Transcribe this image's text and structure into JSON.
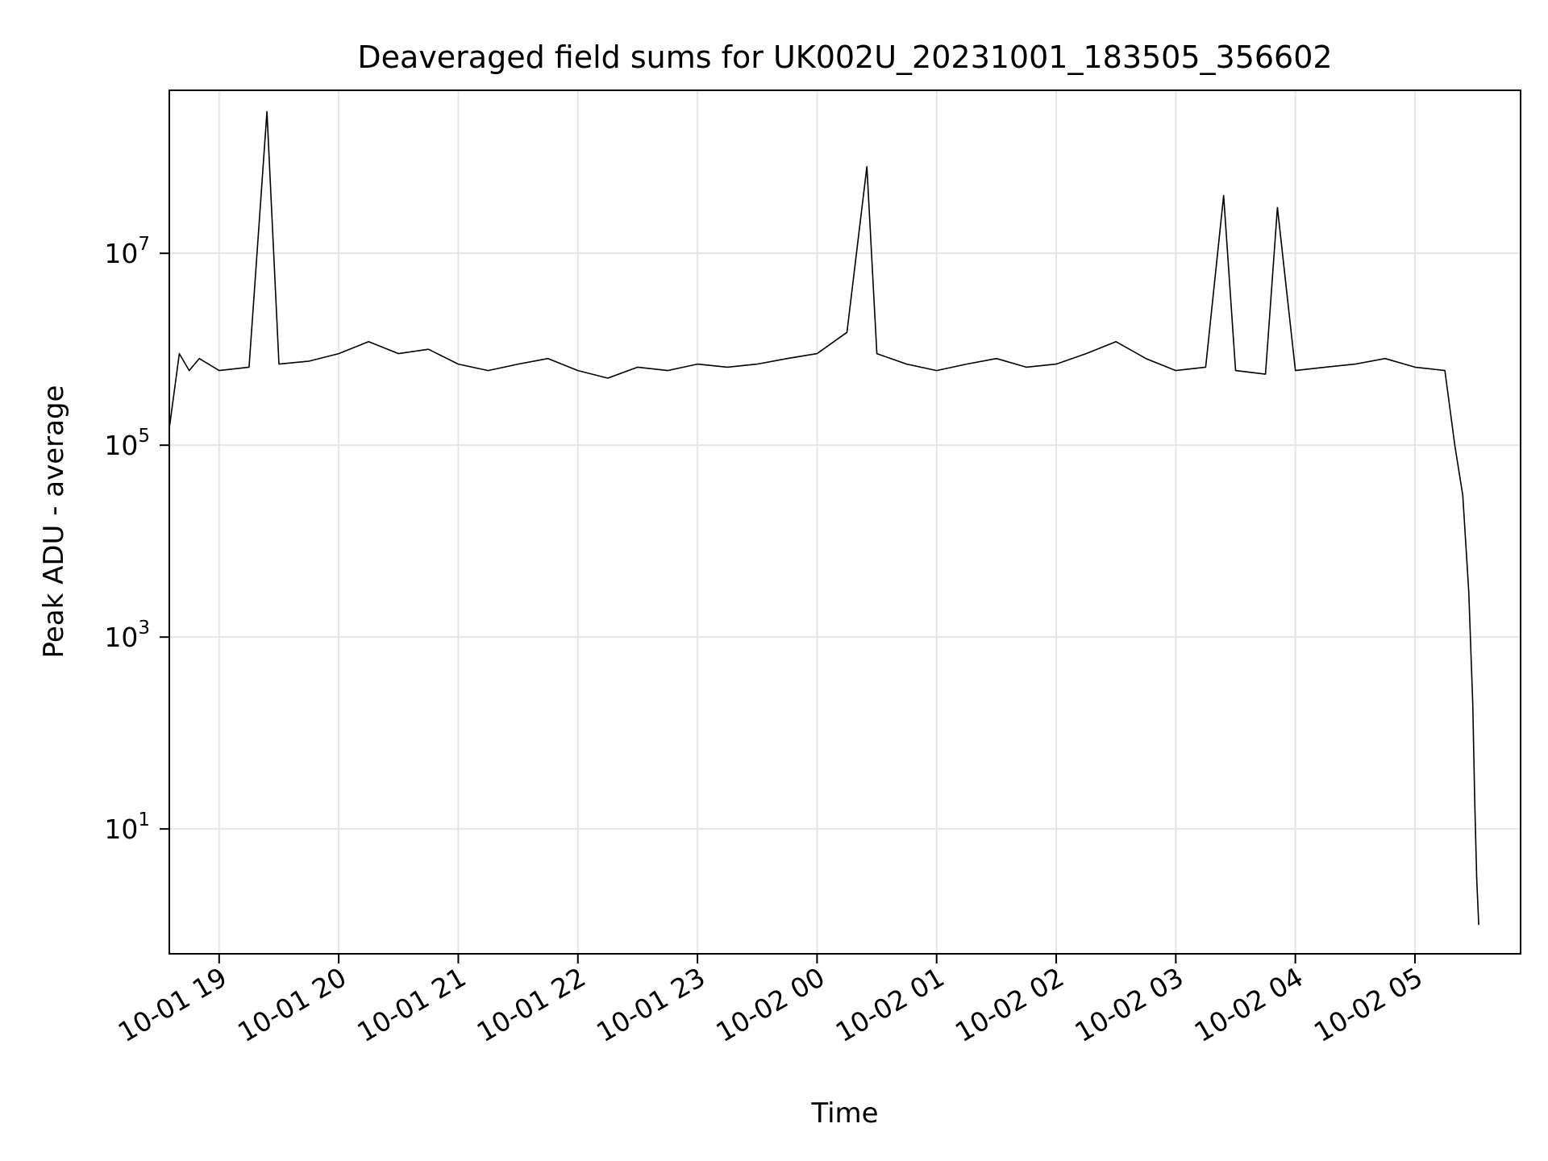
{
  "chart_data": {
    "type": "line",
    "title": "Deaveraged field sums for UK002U_20231001_183505_356602",
    "xlabel": "Time",
    "ylabel": "Peak ADU - average",
    "xlim": [
      "2023-10-01 18:35",
      "2023-10-02 05:53"
    ],
    "ylim": [
      0.5,
      500000000
    ],
    "yscale": "log",
    "grid": true,
    "line_color": "#000000",
    "x_ticks": [
      {
        "value": "2023-10-01 19:00",
        "label": "10-01 19"
      },
      {
        "value": "2023-10-01 20:00",
        "label": "10-01 20"
      },
      {
        "value": "2023-10-01 21:00",
        "label": "10-01 21"
      },
      {
        "value": "2023-10-01 22:00",
        "label": "10-01 22"
      },
      {
        "value": "2023-10-01 23:00",
        "label": "10-01 23"
      },
      {
        "value": "2023-10-02 00:00",
        "label": "10-02 00"
      },
      {
        "value": "2023-10-02 01:00",
        "label": "10-02 01"
      },
      {
        "value": "2023-10-02 02:00",
        "label": "10-02 02"
      },
      {
        "value": "2023-10-02 03:00",
        "label": "10-02 03"
      },
      {
        "value": "2023-10-02 04:00",
        "label": "10-02 04"
      },
      {
        "value": "2023-10-02 05:00",
        "label": "10-02 05"
      }
    ],
    "y_ticks": [
      {
        "value": 10,
        "base": "10",
        "exp": "1"
      },
      {
        "value": 1000,
        "base": "10",
        "exp": "3"
      },
      {
        "value": 100000,
        "base": "10",
        "exp": "5"
      },
      {
        "value": 10000000,
        "base": "10",
        "exp": "7"
      }
    ],
    "series": [
      {
        "x": [
          "2023-10-01 18:35",
          "2023-10-01 18:40",
          "2023-10-01 18:45",
          "2023-10-01 18:50",
          "2023-10-01 19:00",
          "2023-10-01 19:15",
          "2023-10-01 19:24",
          "2023-10-01 19:30",
          "2023-10-01 19:45",
          "2023-10-01 20:00",
          "2023-10-01 20:15",
          "2023-10-01 20:30",
          "2023-10-01 20:45",
          "2023-10-01 21:00",
          "2023-10-01 21:15",
          "2023-10-01 21:30",
          "2023-10-01 21:45",
          "2023-10-01 22:00",
          "2023-10-01 22:15",
          "2023-10-01 22:30",
          "2023-10-01 22:45",
          "2023-10-01 23:00",
          "2023-10-01 23:15",
          "2023-10-01 23:30",
          "2023-10-01 23:45",
          "2023-10-02 00:00",
          "2023-10-02 00:15",
          "2023-10-02 00:25",
          "2023-10-02 00:30",
          "2023-10-02 00:45",
          "2023-10-02 01:00",
          "2023-10-02 01:15",
          "2023-10-02 01:30",
          "2023-10-02 01:45",
          "2023-10-02 02:00",
          "2023-10-02 02:15",
          "2023-10-02 02:30",
          "2023-10-02 02:45",
          "2023-10-02 03:00",
          "2023-10-02 03:15",
          "2023-10-02 03:24",
          "2023-10-02 03:30",
          "2023-10-02 03:45",
          "2023-10-02 03:51",
          "2023-10-02 04:00",
          "2023-10-02 04:15",
          "2023-10-02 04:30",
          "2023-10-02 04:45",
          "2023-10-02 05:00",
          "2023-10-02 05:15",
          "2023-10-02 05:20",
          "2023-10-02 05:24",
          "2023-10-02 05:27",
          "2023-10-02 05:29",
          "2023-10-02 05:30",
          "2023-10-02 05:31",
          "2023-10-02 05:32"
        ],
        "y": [
          150000,
          900000,
          600000,
          800000,
          600000,
          650000,
          300000000,
          700000,
          750000,
          900000,
          1200000,
          900000,
          1000000,
          700000,
          600000,
          700000,
          800000,
          600000,
          500000,
          650000,
          600000,
          700000,
          650000,
          700000,
          800000,
          900000,
          1500000,
          80000000,
          900000,
          700000,
          600000,
          700000,
          800000,
          650000,
          700000,
          900000,
          1200000,
          800000,
          600000,
          650000,
          40000000,
          600000,
          550000,
          30000000,
          600000,
          650000,
          700000,
          800000,
          650000,
          600000,
          100000,
          30000,
          3000,
          200,
          20,
          3,
          1
        ]
      }
    ]
  }
}
